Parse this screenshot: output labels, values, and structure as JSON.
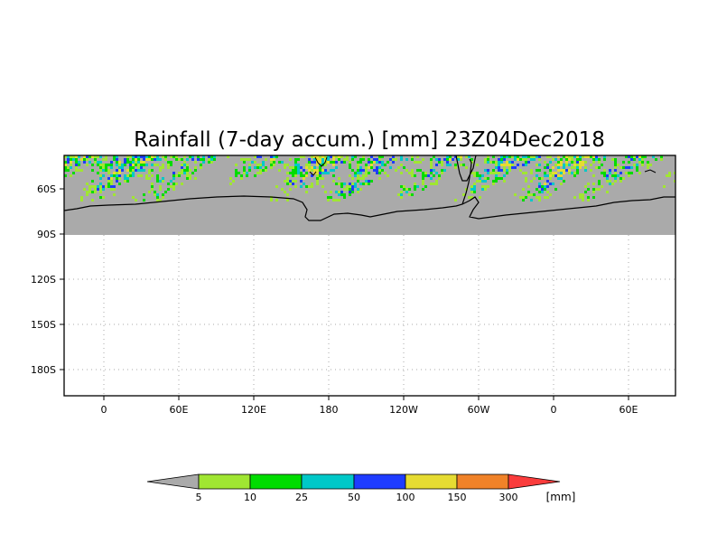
{
  "title": "Rainfall (7-day accum.) [mm] 23Z04Dec2018",
  "map": {
    "lon_ticks": [
      "0",
      "60E",
      "120E",
      "180",
      "120W",
      "60W",
      "0",
      "60E"
    ],
    "lat_ticks": [
      "60S",
      "90S",
      "120S",
      "150S",
      "180S"
    ],
    "land_color": "#aaaaaa",
    "background_color": "#ffffff",
    "grid_style": "dotted"
  },
  "legend": {
    "unit": "[mm]",
    "thresholds": [
      "5",
      "10",
      "25",
      "50",
      "100",
      "150",
      "300"
    ],
    "colors": [
      "#aaaaaa",
      "#a0e632",
      "#00dc00",
      "#00c8c8",
      "#1e3cff",
      "#e6dc32",
      "#f08228",
      "#fa3c3c"
    ]
  }
}
